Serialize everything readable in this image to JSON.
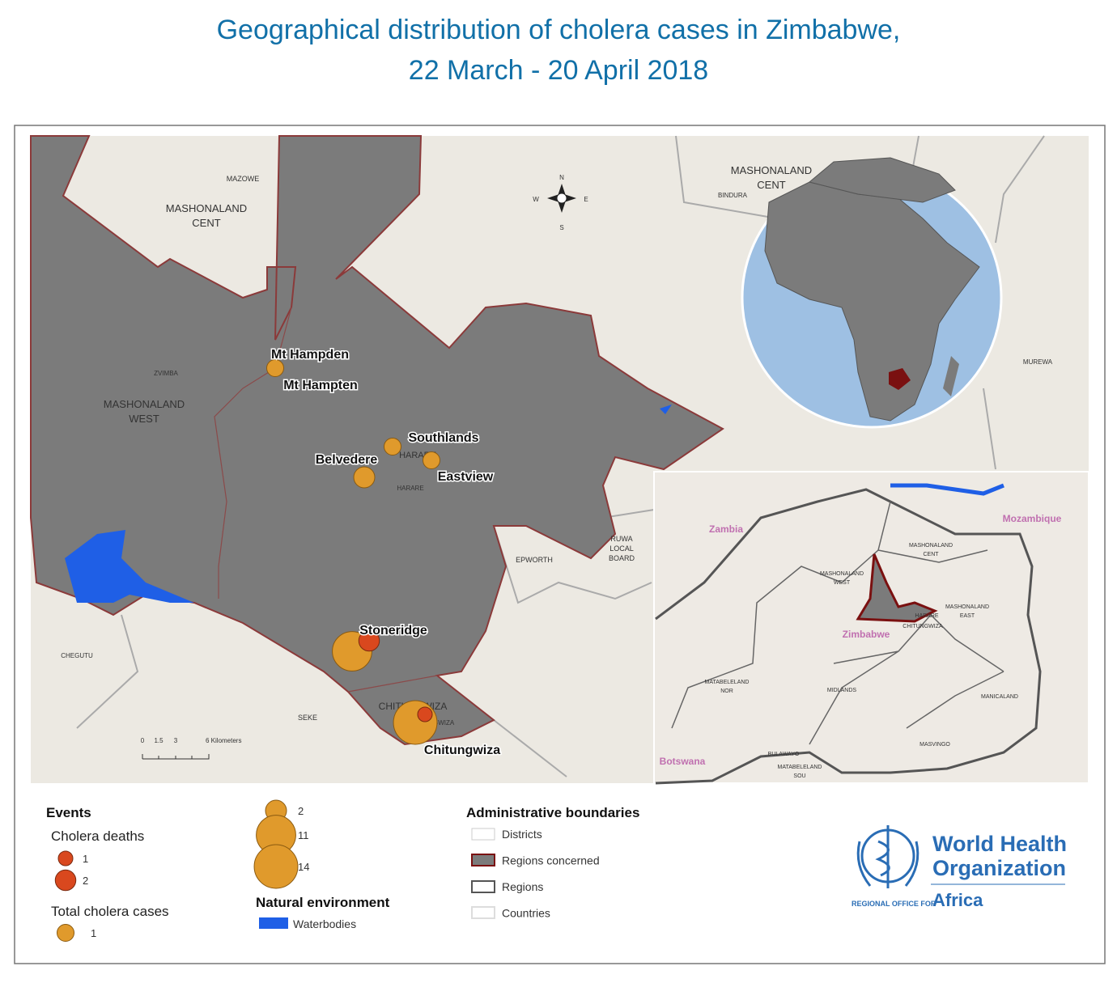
{
  "title": [
    "Geographical distribution of cholera cases in Zimbabwe,",
    "22 March - 20 April 2018"
  ],
  "map_labels": [
    "MAZOWE",
    "MASHONALAND",
    "CENT",
    "ZVIMBA",
    "MASHONALAND",
    "WEST",
    "HARARE",
    "HARARE",
    "Mt Hampten",
    "EPWORTH",
    "RUWA",
    "LOCAL",
    "BOARD",
    "CHEGUTU",
    "SEKE",
    "CHITUNGWIZA",
    "CHITUNGWIZA",
    "MASHONALAND",
    "CENT",
    "BINDURA",
    "MUREWA"
  ],
  "compass": [
    "N",
    "S",
    "E",
    "W"
  ],
  "scale_bar": [
    "0",
    "1.5",
    "3",
    "6 Kilometers"
  ],
  "markers": [
    {
      "name": "Mt Hampden",
      "cases": 1
    },
    {
      "name": "Southlands",
      "cases": 1
    },
    {
      "name": "Eastview",
      "cases": 1
    },
    {
      "name": "Belvedere",
      "cases": 2
    },
    {
      "name": "Stoneridge",
      "cases": 11,
      "deaths": 2
    },
    {
      "name": "Chitungwiza",
      "cases": 14,
      "deaths": 1
    }
  ],
  "inset_labels": [
    "Zambia",
    "Mozambique",
    "MASHONALAND",
    "CENT",
    "MASHONALAND",
    "WEST",
    "HARARE",
    "CHITUNGWIZA",
    "MASHONALAND",
    "EAST",
    "Zimbabwe",
    "MATABELELAND",
    "NOR",
    "MIDLANDS",
    "MANICALAND",
    "MASVINGO",
    "Botswana",
    "BULAWAYO",
    "MATABELELAND",
    "SOU"
  ],
  "legend": {
    "events_title": "Events",
    "deaths_title": "Cholera deaths",
    "deaths": [
      1,
      2
    ],
    "cases_title": "Total cholera cases",
    "cases": [
      1,
      2,
      11,
      14
    ],
    "natural_title": "Natural environment",
    "waterbodies": "Waterbodies",
    "admin_title": "Administrative boundaries",
    "admin_items": [
      "Districts",
      "Regions concerned",
      "Regions",
      "Countries"
    ]
  },
  "logo": {
    "line1": "World Health",
    "line2": "Organization",
    "office": "REGIONAL OFFICE FOR",
    "region": "Africa"
  }
}
